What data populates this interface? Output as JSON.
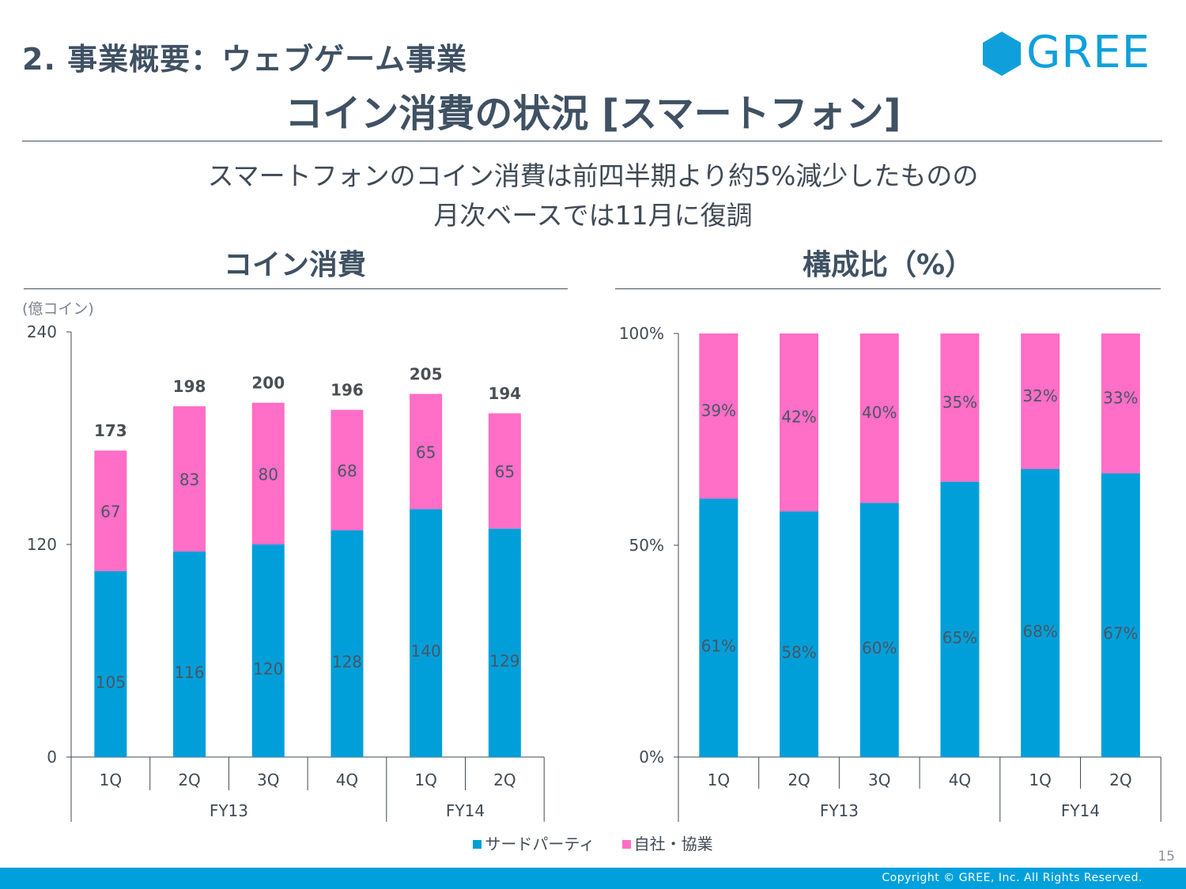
{
  "header": {
    "section_title": "2. 事業概要：ウェブゲーム事業",
    "main_title": "コイン消費の状況 [スマートフォン]",
    "logo_text": "GREE"
  },
  "subtitle": {
    "line1": "スマートフォンのコイン消費は前四半期より約5%減少したものの",
    "line2": "月次ベースでは11月に復調"
  },
  "colors": {
    "third_party": "#009fd9",
    "first_party": "#ff6ec7",
    "text": "#3f5163",
    "footer": "#00a0dc"
  },
  "legend": {
    "items": [
      {
        "label": "サードパーティ",
        "color": "#009fd9"
      },
      {
        "label": "自社・協業",
        "color": "#ff6ec7"
      }
    ]
  },
  "chart_data": [
    {
      "type": "bar",
      "stacked": true,
      "title": "コイン消費",
      "ylabel": "(億コイン)",
      "xlabel": "",
      "ylim": [
        0,
        240
      ],
      "yticks": [
        "0",
        "120",
        "240"
      ],
      "ytick_values": [
        0,
        120,
        240
      ],
      "categories": [
        "1Q",
        "2Q",
        "3Q",
        "4Q",
        "1Q",
        "2Q"
      ],
      "groups": [
        {
          "label": "FY13",
          "count": 4
        },
        {
          "label": "FY14",
          "count": 2
        }
      ],
      "series": [
        {
          "name": "サードパーティ",
          "values": [
            105,
            116,
            120,
            128,
            140,
            129
          ],
          "labels": [
            "105",
            "116",
            "120",
            "128",
            "140",
            "129"
          ]
        },
        {
          "name": "自社・協業",
          "values": [
            67,
            83,
            80,
            68,
            65,
            65
          ],
          "labels": [
            "67",
            "83",
            "80",
            "68",
            "65",
            "65"
          ]
        }
      ],
      "totals": [
        173,
        198,
        200,
        196,
        205,
        194
      ],
      "total_labels": [
        "173",
        "198",
        "200",
        "196",
        "205",
        "194"
      ],
      "grid": false,
      "legend": "bottom"
    },
    {
      "type": "bar",
      "stacked": true,
      "percent": true,
      "title": "構成比（%）",
      "ylabel": "",
      "xlabel": "",
      "ylim": [
        0,
        100
      ],
      "yticks": [
        "0%",
        "50%",
        "100%"
      ],
      "ytick_values": [
        0,
        50,
        100
      ],
      "categories": [
        "1Q",
        "2Q",
        "3Q",
        "4Q",
        "1Q",
        "2Q"
      ],
      "groups": [
        {
          "label": "FY13",
          "count": 4
        },
        {
          "label": "FY14",
          "count": 2
        }
      ],
      "series": [
        {
          "name": "サードパーティ",
          "values": [
            61,
            58,
            60,
            65,
            68,
            67
          ],
          "labels": [
            "61%",
            "58%",
            "60%",
            "65%",
            "68%",
            "67%"
          ]
        },
        {
          "name": "自社・協業",
          "values": [
            39,
            42,
            40,
            35,
            32,
            33
          ],
          "labels": [
            "39%",
            "42%",
            "40%",
            "35%",
            "32%",
            "33%"
          ]
        }
      ],
      "grid": false,
      "legend": "bottom"
    }
  ],
  "footer": {
    "page_number": "15",
    "copyright": "Copyright © GREE, Inc. All Rights Reserved."
  }
}
